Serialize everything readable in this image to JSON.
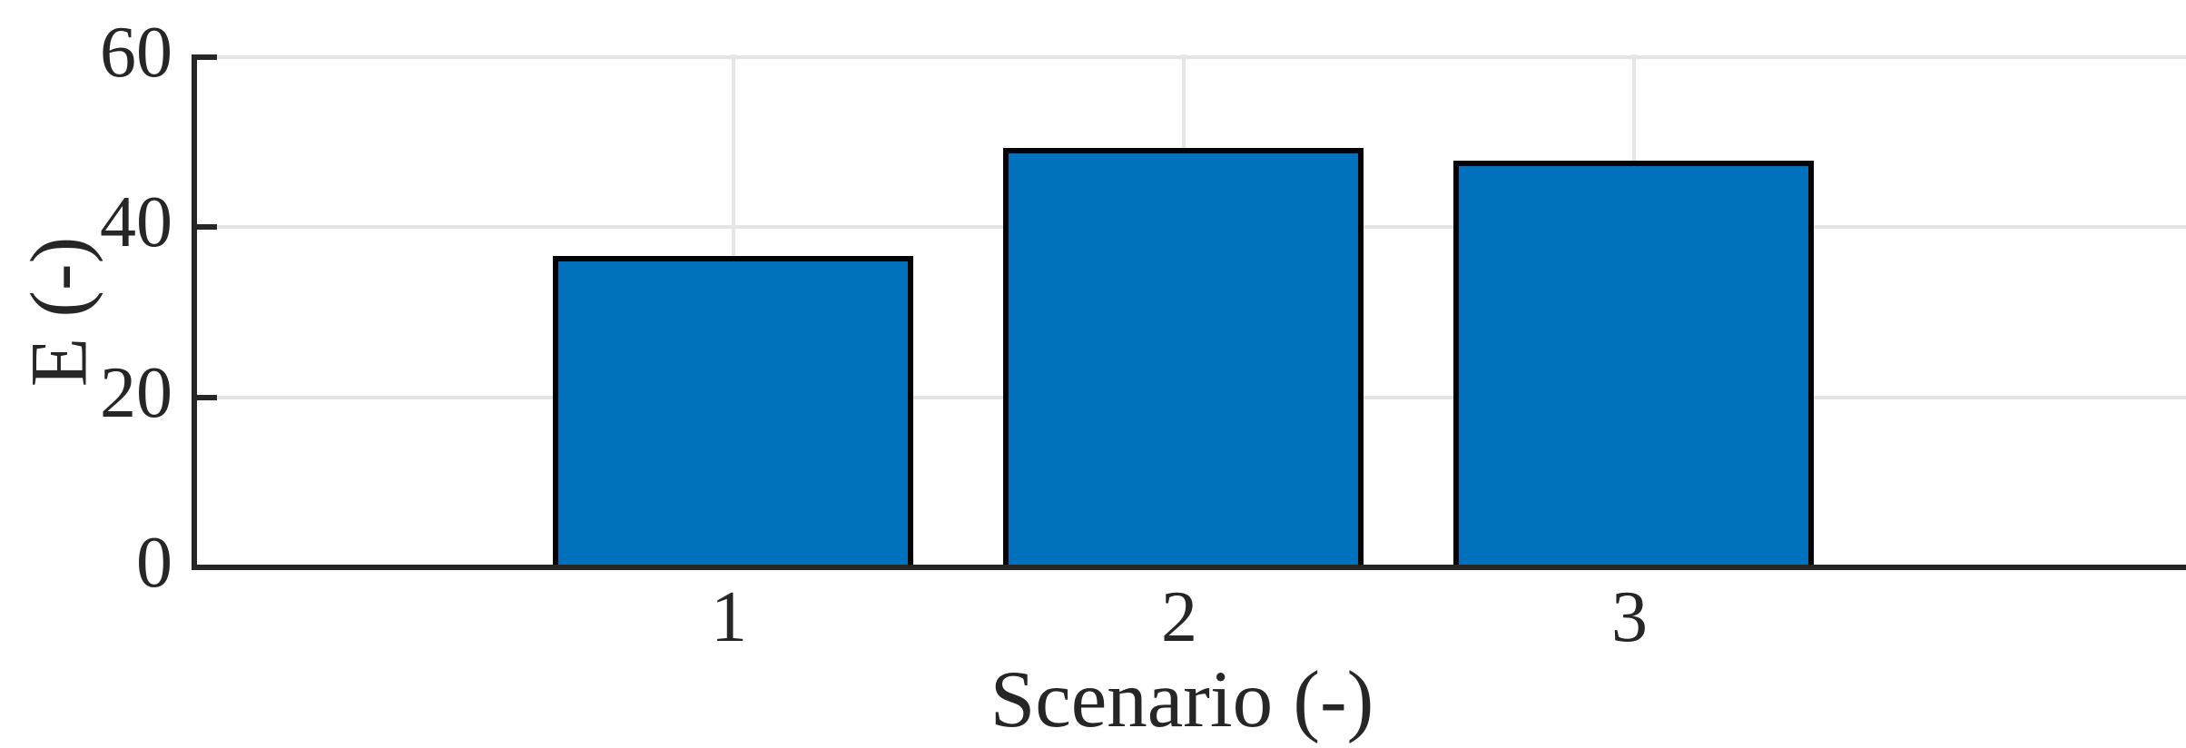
{
  "figure": {
    "background_color": "#FFFFFF"
  },
  "chart_data": {
    "type": "bar",
    "categories": [
      "1",
      "2",
      "3"
    ],
    "values": [
      36.3,
      49.0,
      47.5
    ],
    "title": "",
    "xlabel": "Scenario (-)",
    "ylabel": "E (-)",
    "ylim": [
      0,
      60
    ],
    "yticks": [
      0,
      20,
      40,
      60
    ],
    "xticks": [
      "1",
      "2",
      "3"
    ],
    "grid": "on",
    "legend": "none",
    "bar_fill_color": "#0072BD",
    "bar_edge_color": "#000000",
    "axis_color": "#262626",
    "grid_color": "#E5E5E5",
    "tick_label_color": "#262626"
  }
}
